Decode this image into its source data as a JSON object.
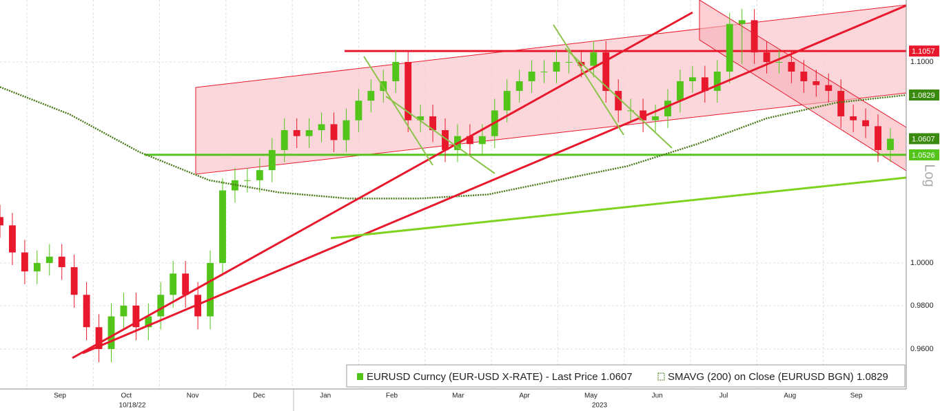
{
  "chart_data": {
    "type": "candlestick",
    "log_scale": true,
    "ylim": [
      0.942,
      1.1328
    ],
    "yticks": [
      {
        "value": 0.96,
        "label": "0.9600"
      },
      {
        "value": 0.98,
        "label": "0.9800"
      },
      {
        "value": 1.0,
        "label": "1.0000"
      },
      {
        "value": 1.1,
        "label": "1.1000"
      }
    ],
    "months": [
      "Sep",
      "Oct",
      "Nov",
      "Dec",
      "Jan",
      "Feb",
      "Mar",
      "Apr",
      "May",
      "Jun",
      "Jul",
      "Aug",
      "Sep"
    ],
    "date_label": "10/18/22",
    "year_label": "2023",
    "scale_label": "Log",
    "up_color": "#52c41a",
    "down_color": "#e8192c",
    "open": [
      1.022,
      1.018,
      1.005,
      0.996,
      1.0,
      1.003,
      0.998,
      0.985,
      0.97,
      0.96,
      0.975,
      0.98,
      0.97,
      0.975,
      0.985,
      0.995,
      0.985,
      0.975,
      1.0,
      1.035,
      1.04,
      1.04,
      1.045,
      1.055,
      1.065,
      1.062,
      1.065,
      1.068,
      1.06,
      1.07,
      1.08,
      1.085,
      1.09,
      1.1,
      1.07,
      1.072,
      1.065,
      1.055,
      1.062,
      1.058,
      1.062,
      1.075,
      1.085,
      1.09,
      1.095,
      1.095,
      1.1,
      1.1,
      1.098,
      1.105,
      1.085,
      1.075,
      1.075,
      1.07,
      1.072,
      1.08,
      1.09,
      1.092,
      1.085,
      1.095,
      1.12,
      1.122,
      1.105,
      1.1,
      1.1,
      1.095,
      1.09,
      1.088,
      1.085,
      1.072,
      1.07,
      1.067,
      1.055
    ],
    "high": [
      1.028,
      1.024,
      1.011,
      1.006,
      1.009,
      1.009,
      1.004,
      0.991,
      0.976,
      0.981,
      0.986,
      0.986,
      0.981,
      0.991,
      1.001,
      1.001,
      0.991,
      1.006,
      1.041,
      1.046,
      1.046,
      1.051,
      1.061,
      1.071,
      1.071,
      1.071,
      1.074,
      1.074,
      1.076,
      1.086,
      1.091,
      1.096,
      1.106,
      1.106,
      1.078,
      1.078,
      1.071,
      1.068,
      1.068,
      1.068,
      1.081,
      1.091,
      1.096,
      1.101,
      1.101,
      1.106,
      1.106,
      1.106,
      1.111,
      1.111,
      1.091,
      1.081,
      1.081,
      1.078,
      1.086,
      1.096,
      1.098,
      1.098,
      1.101,
      1.126,
      1.128,
      1.128,
      1.111,
      1.106,
      1.106,
      1.101,
      1.096,
      1.094,
      1.091,
      1.078,
      1.076,
      1.073,
      1.066
    ],
    "low": [
      1.012,
      0.999,
      0.99,
      0.99,
      0.994,
      0.992,
      0.979,
      0.964,
      0.954,
      0.954,
      0.969,
      0.964,
      0.964,
      0.969,
      0.979,
      0.979,
      0.969,
      0.969,
      0.994,
      1.029,
      1.034,
      1.034,
      1.039,
      1.049,
      1.056,
      1.056,
      1.059,
      1.054,
      1.054,
      1.064,
      1.074,
      1.079,
      1.084,
      1.064,
      1.064,
      1.059,
      1.049,
      1.049,
      1.052,
      1.052,
      1.056,
      1.069,
      1.079,
      1.084,
      1.089,
      1.089,
      1.094,
      1.092,
      1.092,
      1.079,
      1.069,
      1.069,
      1.064,
      1.064,
      1.066,
      1.074,
      1.084,
      1.079,
      1.079,
      1.089,
      1.099,
      1.099,
      1.094,
      1.094,
      1.089,
      1.084,
      1.082,
      1.079,
      1.066,
      1.064,
      1.061,
      1.049,
      1.049
    ],
    "close": [
      1.018,
      1.005,
      0.996,
      1.0,
      1.003,
      0.998,
      0.985,
      0.97,
      0.96,
      0.975,
      0.98,
      0.97,
      0.975,
      0.985,
      0.995,
      0.985,
      0.975,
      1.0,
      1.035,
      1.04,
      1.04,
      1.045,
      1.055,
      1.065,
      1.062,
      1.065,
      1.068,
      1.06,
      1.07,
      1.08,
      1.085,
      1.09,
      1.1,
      1.07,
      1.072,
      1.065,
      1.055,
      1.062,
      1.058,
      1.062,
      1.075,
      1.085,
      1.09,
      1.095,
      1.095,
      1.1,
      1.1,
      1.098,
      1.105,
      1.085,
      1.075,
      1.075,
      1.07,
      1.072,
      1.08,
      1.09,
      1.092,
      1.085,
      1.095,
      1.12,
      1.122,
      1.105,
      1.1,
      1.1,
      1.095,
      1.09,
      1.088,
      1.085,
      1.072,
      1.07,
      1.067,
      1.055,
      1.0607
    ],
    "sma": {
      "color": "#4a7a1a",
      "values": [
        1.087,
        1.073,
        1.054,
        1.04,
        1.034,
        1.031,
        1.031,
        1.033,
        1.04,
        1.047,
        1.058,
        1.071,
        1.079,
        1.0829
      ]
    },
    "levels": [
      {
        "value": 1.1057,
        "color": "#e8192c"
      },
      {
        "value": 1.0829,
        "color": "#3a8a10"
      },
      {
        "value": 1.0607,
        "color": "#3a8a10"
      },
      {
        "value": 1.0526,
        "color": "#52c41a"
      }
    ],
    "legend": [
      "EURUSD Curncy (EUR-USD X-RATE) - Last Price 1.0607",
      "SMAVG (200)  on Close (EURUSD BGN) 1.0829"
    ]
  }
}
